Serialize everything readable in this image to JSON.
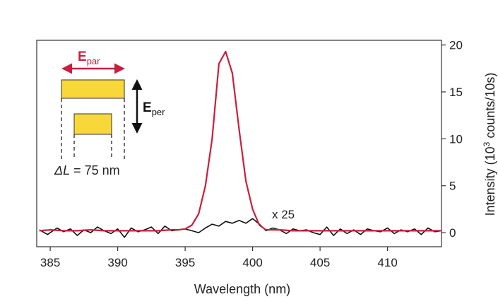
{
  "chart_data": {
    "type": "line",
    "xlabel": "Wavelength (nm)",
    "ylabel": {
      "prefix": "Intensity  (10",
      "sup": "3",
      "suffix": " counts/10s)"
    },
    "xlim": [
      384,
      414
    ],
    "ylim": [
      -1.5,
      20.5
    ],
    "xticks": [
      385,
      390,
      395,
      400,
      405,
      410
    ],
    "yticks": [
      0,
      5,
      10,
      15,
      20
    ],
    "y_axis_side": "right",
    "grid": false,
    "series": [
      {
        "color": "#c8203c",
        "x": [
          384.2,
          385,
          386,
          387,
          388,
          389,
          390,
          391,
          392,
          393,
          394,
          394.5,
          395,
          395.5,
          396,
          396.5,
          397,
          397.5,
          398,
          398.5,
          399,
          399.5,
          400,
          400.5,
          401,
          402,
          403,
          404,
          405,
          406,
          407,
          408,
          409,
          410,
          411,
          412,
          413,
          414
        ],
        "y": [
          0.2,
          0.3,
          0.2,
          0.2,
          0.3,
          0.2,
          0.2,
          0.2,
          0.2,
          0.2,
          0.3,
          0.3,
          0.4,
          0.8,
          2.0,
          5.0,
          10.0,
          18.0,
          19.3,
          17.0,
          11.0,
          5.5,
          2.5,
          0.8,
          0.3,
          0.3,
          0.2,
          0.2,
          0.2,
          0.2,
          0.2,
          0.2,
          0.2,
          0.2,
          0.2,
          0.2,
          0.2,
          0.2
        ]
      },
      {
        "color": "#111111",
        "annotation": "x 25",
        "x": [
          384.2,
          384.8,
          385.5,
          386,
          386.5,
          387,
          387.5,
          388,
          388.5,
          389,
          389.5,
          390,
          390.5,
          391,
          391.5,
          392,
          392.5,
          393,
          393.5,
          394,
          394.5,
          395,
          395.5,
          396,
          396.5,
          397,
          397.5,
          398,
          398.5,
          399,
          399.5,
          400,
          400.5,
          401,
          401.5,
          402,
          402.5,
          403,
          403.5,
          404,
          404.5,
          405,
          405.5,
          406,
          406.5,
          407,
          407.5,
          408,
          408.5,
          409,
          409.5,
          410,
          410.5,
          411,
          411.5,
          412,
          412.5,
          413,
          413.5,
          414
        ],
        "y": [
          0.3,
          -0.2,
          0.5,
          0.1,
          0.4,
          -0.3,
          0.3,
          0,
          0.6,
          0.2,
          -0.1,
          0.4,
          -0.5,
          0.5,
          0.1,
          0.3,
          0.6,
          -0.1,
          0.7,
          0.2,
          0.3,
          0.4,
          0.2,
          0,
          0.5,
          0.9,
          0.7,
          1.2,
          1.0,
          1.3,
          1.0,
          1.5,
          0.9,
          0.2,
          0.5,
          0.3,
          -0.1,
          0.4,
          0.2,
          0.3,
          0,
          -0.2,
          0.6,
          -0.3,
          0.4,
          -0.1,
          0.3,
          -0.2,
          0.4,
          0.2,
          0.1,
          0.5,
          -0.1,
          0.3,
          0.1,
          0.4,
          -0.2,
          0.5,
          0.1,
          0.2
        ]
      }
    ]
  },
  "inset": {
    "epar": {
      "main": "E",
      "sub": "par"
    },
    "eper": {
      "main": "E",
      "sub": "per"
    },
    "delta_label": {
      "symbol": "ΔL",
      "rest": " = 75 nm"
    }
  },
  "colors": {
    "red": "#c8203c",
    "black": "#111111",
    "gold": "#f7d838",
    "gold_edge": "#333333",
    "frame": "#333333"
  }
}
